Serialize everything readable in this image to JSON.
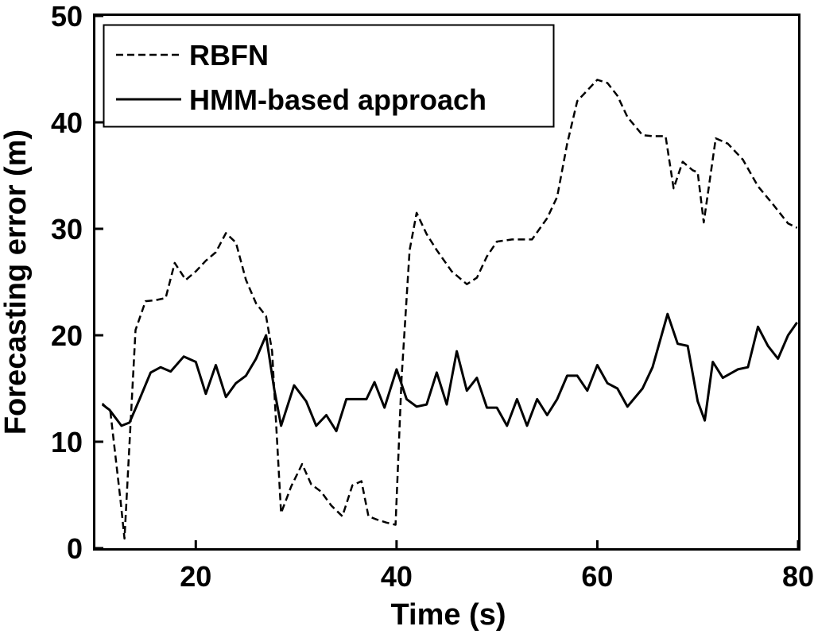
{
  "chart_data": {
    "type": "line",
    "xlabel": "Time (s)",
    "ylabel": "Forecasting error (m)",
    "xlim": [
      10,
      80
    ],
    "ylim": [
      0,
      50
    ],
    "xticks": [
      "20",
      "40",
      "60",
      "80"
    ],
    "yticks": [
      "0",
      "10",
      "20",
      "30",
      "40",
      "50"
    ],
    "grid": false,
    "legend_position": "top-left",
    "series": [
      {
        "name": "RBFN",
        "style": "dashed",
        "color": "#000000",
        "points": [
          [
            10.7,
            13.6
          ],
          [
            11.5,
            12.8
          ],
          [
            12.5,
            4.5
          ],
          [
            12.9,
            0.9
          ],
          [
            13.4,
            9.8
          ],
          [
            14.0,
            20.5
          ],
          [
            15.0,
            23.2
          ],
          [
            16.0,
            23.3
          ],
          [
            17.0,
            23.5
          ],
          [
            17.9,
            26.8
          ],
          [
            19.0,
            25.2
          ],
          [
            20.0,
            26.0
          ],
          [
            21.0,
            27.0
          ],
          [
            22.0,
            27.8
          ],
          [
            23.0,
            29.6
          ],
          [
            24.0,
            28.7
          ],
          [
            25.0,
            25.2
          ],
          [
            26.0,
            23.0
          ],
          [
            27.0,
            21.8
          ],
          [
            27.6,
            18.5
          ],
          [
            28.5,
            3.3
          ],
          [
            29.5,
            5.8
          ],
          [
            30.6,
            7.9
          ],
          [
            31.5,
            6.0
          ],
          [
            32.5,
            5.3
          ],
          [
            33.5,
            4.0
          ],
          [
            34.6,
            3.0
          ],
          [
            35.6,
            5.9
          ],
          [
            36.5,
            6.3
          ],
          [
            37.2,
            3.0
          ],
          [
            38.0,
            2.7
          ],
          [
            39.0,
            2.4
          ],
          [
            39.9,
            2.2
          ],
          [
            40.5,
            16.0
          ],
          [
            41.3,
            28.0
          ],
          [
            42.0,
            31.5
          ],
          [
            43.0,
            29.5
          ],
          [
            44.0,
            28.0
          ],
          [
            45.5,
            26.0
          ],
          [
            47.0,
            24.8
          ],
          [
            48.0,
            25.4
          ],
          [
            49.0,
            27.4
          ],
          [
            50.0,
            28.8
          ],
          [
            51.5,
            29.0
          ],
          [
            53.5,
            29.0
          ],
          [
            55.0,
            31.0
          ],
          [
            56.0,
            33.0
          ],
          [
            57.0,
            38.0
          ],
          [
            58.0,
            42.0
          ],
          [
            60.0,
            44.0
          ],
          [
            61.0,
            43.7
          ],
          [
            62.0,
            42.5
          ],
          [
            63.0,
            40.5
          ],
          [
            64.5,
            38.8
          ],
          [
            65.5,
            38.7
          ],
          [
            66.8,
            38.7
          ],
          [
            67.6,
            33.8
          ],
          [
            68.5,
            36.3
          ],
          [
            69.5,
            35.5
          ],
          [
            70.0,
            35.3
          ],
          [
            70.6,
            30.6
          ],
          [
            71.8,
            38.5
          ],
          [
            73.0,
            38.0
          ],
          [
            74.5,
            36.5
          ],
          [
            76.0,
            34.0
          ],
          [
            77.5,
            32.3
          ],
          [
            79.0,
            30.5
          ],
          [
            79.9,
            30.1
          ]
        ]
      },
      {
        "name": "HMM-based approach",
        "style": "solid",
        "color": "#000000",
        "points": [
          [
            10.7,
            13.5
          ],
          [
            11.4,
            13.0
          ],
          [
            12.6,
            11.5
          ],
          [
            13.4,
            11.8
          ],
          [
            14.4,
            14.0
          ],
          [
            15.5,
            16.5
          ],
          [
            16.5,
            17.0
          ],
          [
            17.5,
            16.6
          ],
          [
            18.8,
            18.0
          ],
          [
            20.0,
            17.5
          ],
          [
            21.0,
            14.5
          ],
          [
            22.0,
            17.2
          ],
          [
            23.0,
            14.2
          ],
          [
            24.0,
            15.5
          ],
          [
            25.0,
            16.2
          ],
          [
            26.0,
            17.8
          ],
          [
            27.0,
            20.0
          ],
          [
            27.8,
            15.0
          ],
          [
            28.5,
            11.5
          ],
          [
            29.8,
            15.3
          ],
          [
            31.0,
            13.8
          ],
          [
            32.0,
            11.5
          ],
          [
            33.0,
            12.5
          ],
          [
            34.0,
            11.0
          ],
          [
            35.0,
            14.0
          ],
          [
            36.0,
            14.0
          ],
          [
            37.0,
            14.0
          ],
          [
            37.8,
            15.6
          ],
          [
            38.8,
            13.2
          ],
          [
            40.0,
            16.8
          ],
          [
            41.0,
            14.0
          ],
          [
            42.0,
            13.3
          ],
          [
            43.0,
            13.5
          ],
          [
            44.0,
            16.5
          ],
          [
            45.0,
            13.5
          ],
          [
            46.0,
            18.5
          ],
          [
            47.0,
            14.8
          ],
          [
            48.0,
            16.0
          ],
          [
            49.0,
            13.2
          ],
          [
            50.0,
            13.2
          ],
          [
            51.0,
            11.5
          ],
          [
            52.0,
            14.0
          ],
          [
            53.0,
            11.5
          ],
          [
            54.0,
            14.0
          ],
          [
            55.0,
            12.5
          ],
          [
            56.0,
            14.0
          ],
          [
            57.0,
            16.2
          ],
          [
            58.0,
            16.2
          ],
          [
            59.0,
            14.8
          ],
          [
            60.0,
            17.2
          ],
          [
            61.0,
            15.5
          ],
          [
            62.0,
            15.0
          ],
          [
            63.0,
            13.3
          ],
          [
            64.5,
            15.0
          ],
          [
            65.5,
            17.0
          ],
          [
            67.0,
            22.0
          ],
          [
            68.0,
            19.2
          ],
          [
            69.0,
            19.0
          ],
          [
            70.0,
            13.8
          ],
          [
            70.7,
            12.0
          ],
          [
            71.5,
            17.5
          ],
          [
            72.5,
            16.0
          ],
          [
            74.0,
            16.8
          ],
          [
            75.0,
            17.0
          ],
          [
            76.0,
            20.8
          ],
          [
            77.0,
            19.0
          ],
          [
            78.0,
            17.8
          ],
          [
            79.0,
            20.0
          ],
          [
            79.9,
            21.2
          ]
        ]
      }
    ]
  }
}
